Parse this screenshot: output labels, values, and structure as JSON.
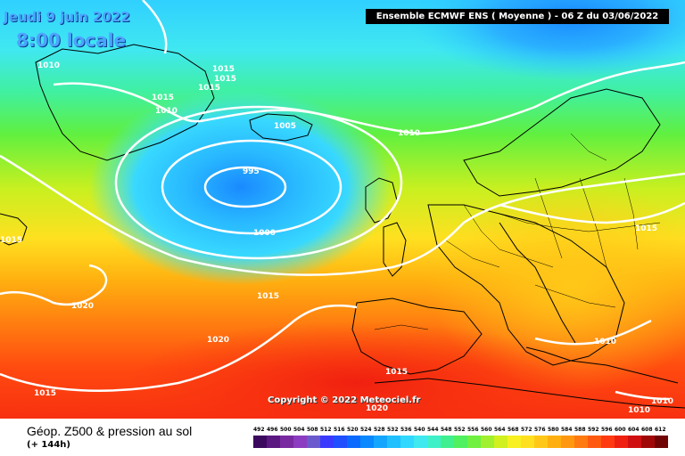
{
  "header": {
    "date": "Jeudi 9 juin 2022",
    "time": "8:00 locale",
    "run_info": "Ensemble ECMWF ENS  ( Moyenne )  -  06 Z du 03/06/2022"
  },
  "copyright": "Copyright © 2022 Meteociel.fr",
  "legend": {
    "title": "Géop. Z500 & pression au sol",
    "subtitle": "(+ 144h)",
    "scale_values": [
      "492",
      "496",
      "500",
      "504",
      "508",
      "512",
      "516",
      "520",
      "524",
      "528",
      "532",
      "536",
      "540",
      "544",
      "548",
      "552",
      "556",
      "560",
      "564",
      "568",
      "572",
      "576",
      "580",
      "584",
      "588",
      "592",
      "596",
      "600",
      "604",
      "608",
      "612"
    ],
    "scale_colors": [
      "#3b0a5e",
      "#5a1880",
      "#7a2aa0",
      "#8c3cc0",
      "#6a5acd",
      "#3a3aff",
      "#1f4fff",
      "#0a6aff",
      "#0a88ff",
      "#14a6ff",
      "#20c0ff",
      "#30d8ff",
      "#40e8f0",
      "#40f0c8",
      "#40f090",
      "#50f060",
      "#70f040",
      "#a0f030",
      "#d0f020",
      "#f8f020",
      "#ffe020",
      "#ffc818",
      "#ffb010",
      "#ff9810",
      "#ff7a10",
      "#ff5a10",
      "#ff3a10",
      "#f02010",
      "#d01010",
      "#a00808",
      "#700404"
    ]
  },
  "isobars": {
    "labels": [
      "1010",
      "1015",
      "1015",
      "1015",
      "1015",
      "1010",
      "1005",
      "995",
      "1000",
      "1010",
      "1015",
      "1015",
      "1020",
      "1015",
      "1020",
      "1015",
      "1015",
      "1010",
      "1010",
      "1010",
      "1020"
    ]
  },
  "colors": {
    "contour": "#ffffff",
    "coast": "#000000"
  }
}
